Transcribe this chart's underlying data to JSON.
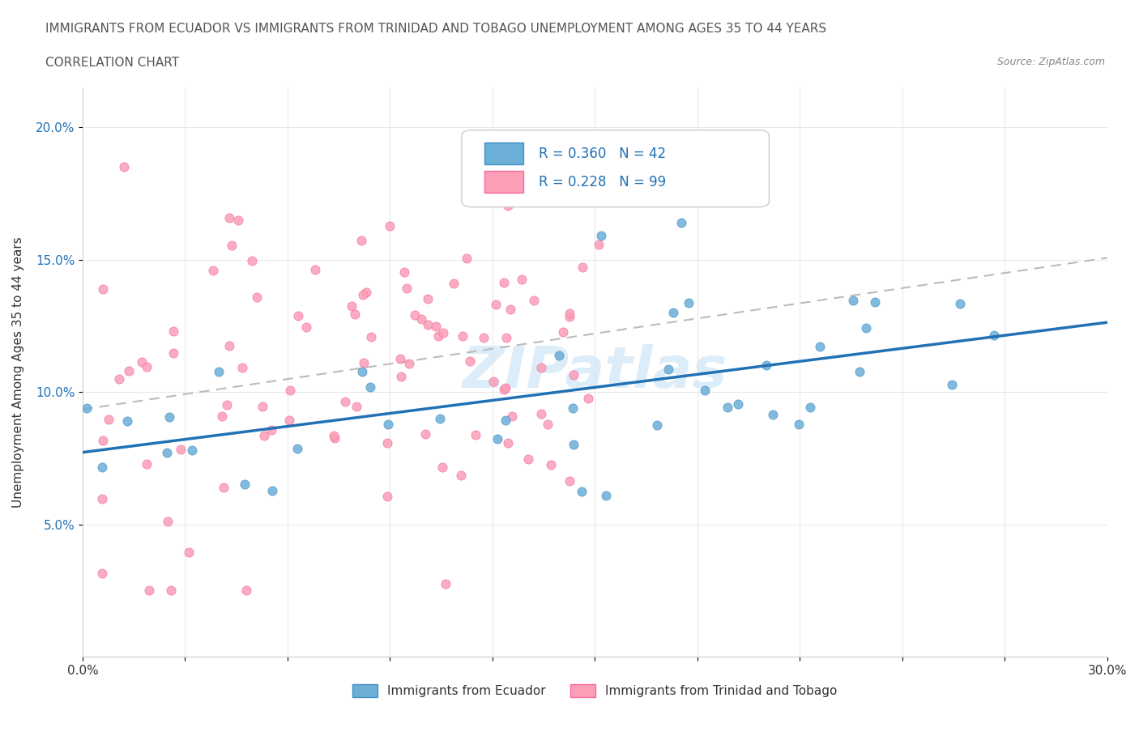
{
  "title_line1": "IMMIGRANTS FROM ECUADOR VS IMMIGRANTS FROM TRINIDAD AND TOBAGO UNEMPLOYMENT AMONG AGES 35 TO 44 YEARS",
  "title_line2": "CORRELATION CHART",
  "source": "Source: ZipAtlas.com",
  "ylabel": "Unemployment Among Ages 35 to 44 years",
  "xmin": 0.0,
  "xmax": 0.3,
  "ymin": 0.0,
  "ymax": 0.215,
  "watermark": "ZIPatlas",
  "ecuador_color": "#6baed6",
  "ecuador_edge": "#4292c6",
  "trinidad_color": "#fa9fb5",
  "trinidad_edge": "#f768a1",
  "ecuador_line_color": "#2171b5",
  "trinidad_line_color": "#bbbbbb",
  "ecuador_R": 0.36,
  "ecuador_N": 42,
  "trinidad_R": 0.228,
  "trinidad_N": 99,
  "ecuador_label": "Immigrants from Ecuador",
  "trinidad_label": "Immigrants from Trinidad and Tobago",
  "yticks": [
    0.05,
    0.1,
    0.15,
    0.2
  ],
  "legend_R_color": "#2171b5",
  "watermark_color": "#a8d4f0"
}
